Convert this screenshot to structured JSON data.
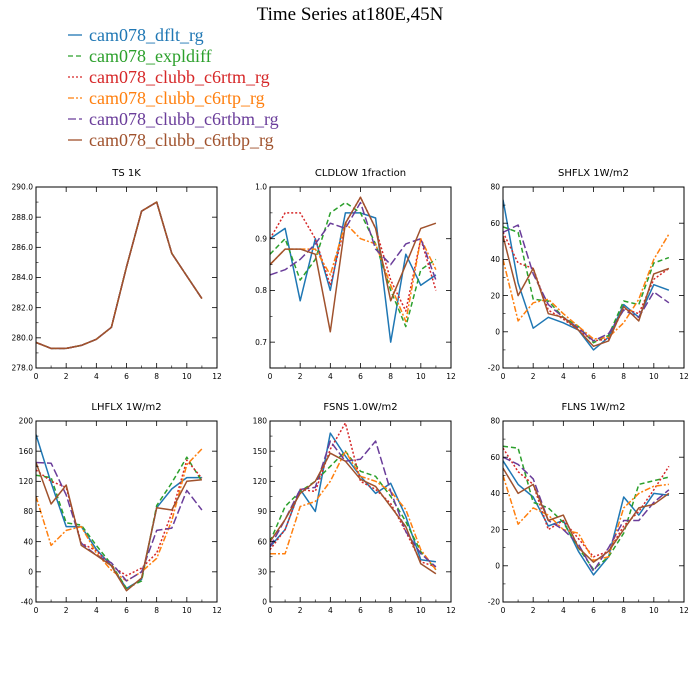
{
  "figure_title": "Time Series at180E,45N",
  "legend": [
    {
      "label": "cam078_dflt_rg",
      "color": "#1f77b4",
      "dash": "solid"
    },
    {
      "label": "cam078_expldiff",
      "color": "#2ca02c",
      "dash": "dash"
    },
    {
      "label": "cam078_clubb_c6rtm_rg",
      "color": "#d62728",
      "dash": "dot"
    },
    {
      "label": "cam078_clubb_c6rtp_rg",
      "color": "#ff7f0e",
      "dash": "dashdot"
    },
    {
      "label": "cam078_clubb_c6rtbm_rg",
      "color": "#6a3d9a",
      "dash": "longdash"
    },
    {
      "label": "cam078_clubb_c6rtbp_rg",
      "color": "#a0522d",
      "dash": "solid"
    }
  ],
  "chart_data": [
    {
      "type": "line",
      "title": "TS 1K",
      "x": [
        0,
        1,
        2,
        3,
        4,
        5,
        6,
        7,
        8,
        9,
        10,
        11
      ],
      "xlim": [
        0,
        12
      ],
      "xticks": [
        0,
        2,
        4,
        6,
        8,
        10,
        12
      ],
      "ylim": [
        278,
        290
      ],
      "yticks": [
        278.0,
        280.0,
        282.0,
        284.0,
        286.0,
        288.0,
        290.0
      ],
      "ytick_labels": [
        "278.0",
        "280.0",
        "282.0",
        "284.0",
        "286.0",
        "288.0",
        "290.0"
      ],
      "series": [
        {
          "values": [
            279.7,
            279.3,
            279.3,
            279.5,
            279.9,
            280.7,
            284.7,
            288.4,
            289.0,
            285.6,
            284.1,
            282.6
          ]
        },
        {
          "values": [
            279.7,
            279.3,
            279.3,
            279.5,
            279.9,
            280.7,
            284.7,
            288.4,
            289.0,
            285.6,
            284.1,
            282.6
          ]
        },
        {
          "values": [
            279.7,
            279.3,
            279.3,
            279.5,
            279.9,
            280.7,
            284.7,
            288.4,
            289.0,
            285.6,
            284.1,
            282.6
          ]
        },
        {
          "values": [
            279.7,
            279.3,
            279.3,
            279.5,
            279.9,
            280.7,
            284.7,
            288.4,
            289.0,
            285.6,
            284.1,
            282.6
          ]
        },
        {
          "values": [
            279.7,
            279.3,
            279.3,
            279.5,
            279.9,
            280.7,
            284.7,
            288.4,
            289.0,
            285.6,
            284.1,
            282.6
          ]
        },
        {
          "values": [
            279.7,
            279.3,
            279.3,
            279.5,
            279.9,
            280.7,
            284.7,
            288.4,
            289.0,
            285.6,
            284.1,
            282.6
          ]
        }
      ]
    },
    {
      "type": "line",
      "title": "CLDLOW 1fraction",
      "x": [
        0,
        1,
        2,
        3,
        4,
        5,
        6,
        7,
        8,
        9,
        10,
        11
      ],
      "xlim": [
        0,
        12
      ],
      "xticks": [
        0,
        2,
        4,
        6,
        8,
        10,
        12
      ],
      "ylim": [
        0.65,
        1.0
      ],
      "yticks": [
        0.7,
        0.8,
        0.9,
        1.0
      ],
      "ytick_labels": [
        "0.7",
        "0.8",
        "0.9",
        "1.0"
      ],
      "series": [
        {
          "values": [
            0.9,
            0.92,
            0.78,
            0.9,
            0.8,
            0.95,
            0.95,
            0.94,
            0.7,
            0.87,
            0.81,
            0.83
          ]
        },
        {
          "values": [
            0.87,
            0.9,
            0.82,
            0.86,
            0.95,
            0.97,
            0.95,
            0.89,
            0.8,
            0.73,
            0.84,
            0.86
          ]
        },
        {
          "values": [
            0.9,
            0.95,
            0.95,
            0.9,
            0.81,
            0.93,
            0.98,
            0.92,
            0.82,
            0.76,
            0.9,
            0.8
          ]
        },
        {
          "values": [
            0.85,
            0.88,
            0.88,
            0.88,
            0.83,
            0.93,
            0.9,
            0.89,
            0.81,
            0.74,
            0.9,
            0.84
          ]
        },
        {
          "values": [
            0.83,
            0.84,
            0.86,
            0.89,
            0.93,
            0.92,
            0.97,
            0.88,
            0.85,
            0.89,
            0.9,
            0.82
          ]
        },
        {
          "values": [
            0.85,
            0.88,
            0.88,
            0.87,
            0.72,
            0.93,
            0.98,
            0.92,
            0.78,
            0.85,
            0.92,
            0.93
          ]
        }
      ]
    },
    {
      "type": "line",
      "title": "SHFLX 1W/m2",
      "x": [
        0,
        1,
        2,
        3,
        4,
        5,
        6,
        7,
        8,
        9,
        10,
        11
      ],
      "xlim": [
        0,
        12
      ],
      "xticks": [
        0,
        2,
        4,
        6,
        8,
        10,
        12
      ],
      "ylim": [
        -20,
        80
      ],
      "yticks": [
        -20,
        0,
        20,
        40,
        60,
        80
      ],
      "ytick_labels": [
        "-20",
        "0",
        "20",
        "40",
        "60",
        "80"
      ],
      "series": [
        {
          "values": [
            73,
            27,
            2,
            8,
            5,
            1,
            -10,
            -3,
            15,
            8,
            26,
            23
          ]
        },
        {
          "values": [
            58,
            55,
            18,
            17,
            8,
            3,
            -6,
            -2,
            17,
            15,
            38,
            41
          ]
        },
        {
          "values": [
            55,
            38,
            35,
            12,
            7,
            1,
            -5,
            -4,
            13,
            10,
            29,
            35
          ]
        },
        {
          "values": [
            40,
            6,
            16,
            18,
            10,
            3,
            -4,
            -3,
            5,
            18,
            40,
            54
          ]
        },
        {
          "values": [
            55,
            59,
            32,
            15,
            8,
            2,
            -5,
            -1,
            12,
            8,
            22,
            16
          ]
        },
        {
          "values": [
            53,
            20,
            35,
            10,
            8,
            1,
            -8,
            -5,
            14,
            6,
            32,
            35
          ]
        }
      ]
    },
    {
      "type": "line",
      "title": "LHFLX 1W/m2",
      "x": [
        0,
        1,
        2,
        3,
        4,
        5,
        6,
        7,
        8,
        9,
        10,
        11
      ],
      "xlim": [
        0,
        12
      ],
      "xticks": [
        0,
        2,
        4,
        6,
        8,
        10,
        12
      ],
      "ylim": [
        -40,
        200
      ],
      "yticks": [
        -40,
        0,
        40,
        80,
        120,
        160,
        200
      ],
      "ytick_labels": [
        "-40",
        "0",
        "40",
        "80",
        "120",
        "160",
        "200"
      ],
      "series": [
        {
          "values": [
            182,
            118,
            60,
            60,
            30,
            8,
            -22,
            -10,
            85,
            110,
            125,
            125
          ]
        },
        {
          "values": [
            128,
            125,
            65,
            62,
            35,
            10,
            -22,
            -12,
            88,
            118,
            152,
            120
          ]
        },
        {
          "values": [
            135,
            120,
            112,
            38,
            28,
            8,
            -5,
            5,
            25,
            78,
            148,
            124
          ]
        },
        {
          "values": [
            100,
            35,
            55,
            60,
            25,
            2,
            -12,
            0,
            18,
            68,
            142,
            163
          ]
        },
        {
          "values": [
            145,
            144,
            102,
            38,
            22,
            12,
            -12,
            0,
            55,
            58,
            108,
            82
          ]
        },
        {
          "values": [
            145,
            90,
            115,
            35,
            22,
            8,
            -25,
            -8,
            85,
            82,
            120,
            122
          ]
        }
      ]
    },
    {
      "type": "line",
      "title": "FSNS 1.0W/m2",
      "x": [
        0,
        1,
        2,
        3,
        4,
        5,
        6,
        7,
        8,
        9,
        10,
        11
      ],
      "xlim": [
        0,
        12
      ],
      "xticks": [
        0,
        2,
        4,
        6,
        8,
        10,
        12
      ],
      "ylim": [
        0,
        180
      ],
      "yticks": [
        0,
        30,
        60,
        90,
        120,
        150,
        180
      ],
      "ytick_labels": [
        "0",
        "30",
        "60",
        "90",
        "120",
        "150",
        "180"
      ],
      "series": [
        {
          "values": [
            55,
            72,
            112,
            90,
            168,
            145,
            125,
            108,
            118,
            85,
            42,
            40
          ]
        },
        {
          "values": [
            60,
            95,
            110,
            120,
            135,
            150,
            130,
            125,
            105,
            80,
            50,
            32
          ]
        },
        {
          "values": [
            52,
            72,
            112,
            110,
            152,
            178,
            120,
            112,
            98,
            70,
            40,
            35
          ]
        },
        {
          "values": [
            48,
            48,
            95,
            100,
            120,
            150,
            125,
            120,
            110,
            92,
            52,
            32
          ]
        },
        {
          "values": [
            55,
            82,
            112,
            114,
            160,
            140,
            142,
            160,
            110,
            70,
            48,
            35
          ]
        },
        {
          "values": [
            60,
            82,
            108,
            120,
            148,
            140,
            122,
            115,
            95,
            75,
            38,
            28
          ]
        }
      ]
    },
    {
      "type": "line",
      "title": "FLNS 1W/m2",
      "x": [
        0,
        1,
        2,
        3,
        4,
        5,
        6,
        7,
        8,
        9,
        10,
        11
      ],
      "xlim": [
        0,
        12
      ],
      "xticks": [
        0,
        2,
        4,
        6,
        8,
        10,
        12
      ],
      "ylim": [
        -20,
        80
      ],
      "yticks": [
        -20,
        0,
        20,
        40,
        60,
        80
      ],
      "ytick_labels": [
        "-20",
        "0",
        "20",
        "40",
        "60",
        "80"
      ],
      "series": [
        {
          "values": [
            58,
            45,
            38,
            22,
            25,
            8,
            -5,
            5,
            38,
            28,
            40,
            39
          ]
        },
        {
          "values": [
            66,
            65,
            35,
            32,
            24,
            10,
            -2,
            5,
            18,
            45,
            47,
            49
          ]
        },
        {
          "values": [
            65,
            52,
            45,
            20,
            25,
            15,
            5,
            8,
            22,
            30,
            42,
            55
          ]
        },
        {
          "values": [
            50,
            23,
            32,
            28,
            20,
            18,
            3,
            5,
            32,
            40,
            44,
            45
          ]
        },
        {
          "values": [
            60,
            56,
            48,
            25,
            20,
            12,
            -3,
            10,
            25,
            25,
            35,
            42
          ]
        },
        {
          "values": [
            54,
            40,
            45,
            25,
            28,
            10,
            2,
            8,
            20,
            32,
            34,
            40
          ]
        }
      ]
    }
  ]
}
